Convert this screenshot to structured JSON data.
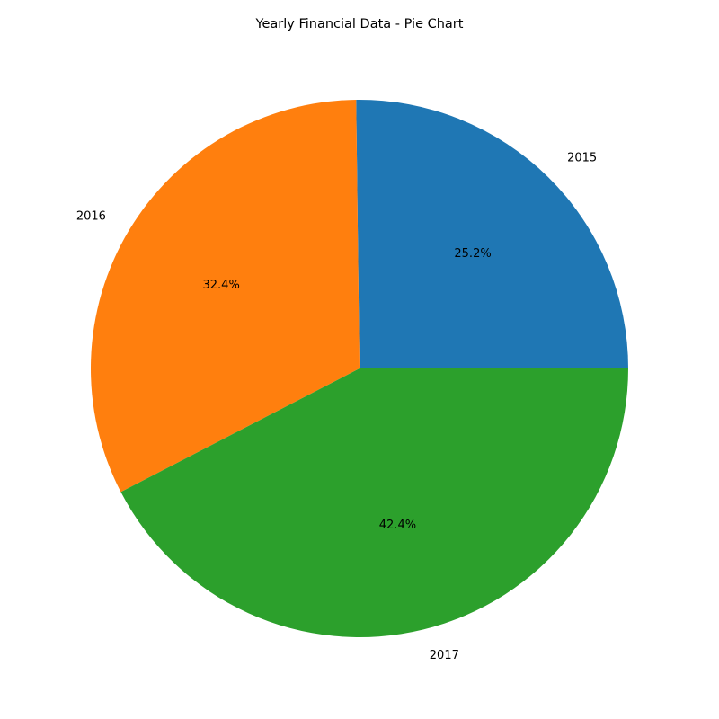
{
  "chart_data": {
    "type": "pie",
    "title": "Yearly Financial Data - Pie Chart",
    "labels": [
      "2015",
      "2016",
      "2017"
    ],
    "values": [
      25.2,
      32.4,
      42.4
    ],
    "percent_labels": [
      "25.2%",
      "32.4%",
      "42.4%"
    ],
    "colors": [
      "#1f77b4",
      "#ff7f0e",
      "#2ca02c"
    ],
    "start_angle_deg": 0,
    "direction": "counterclockwise"
  }
}
